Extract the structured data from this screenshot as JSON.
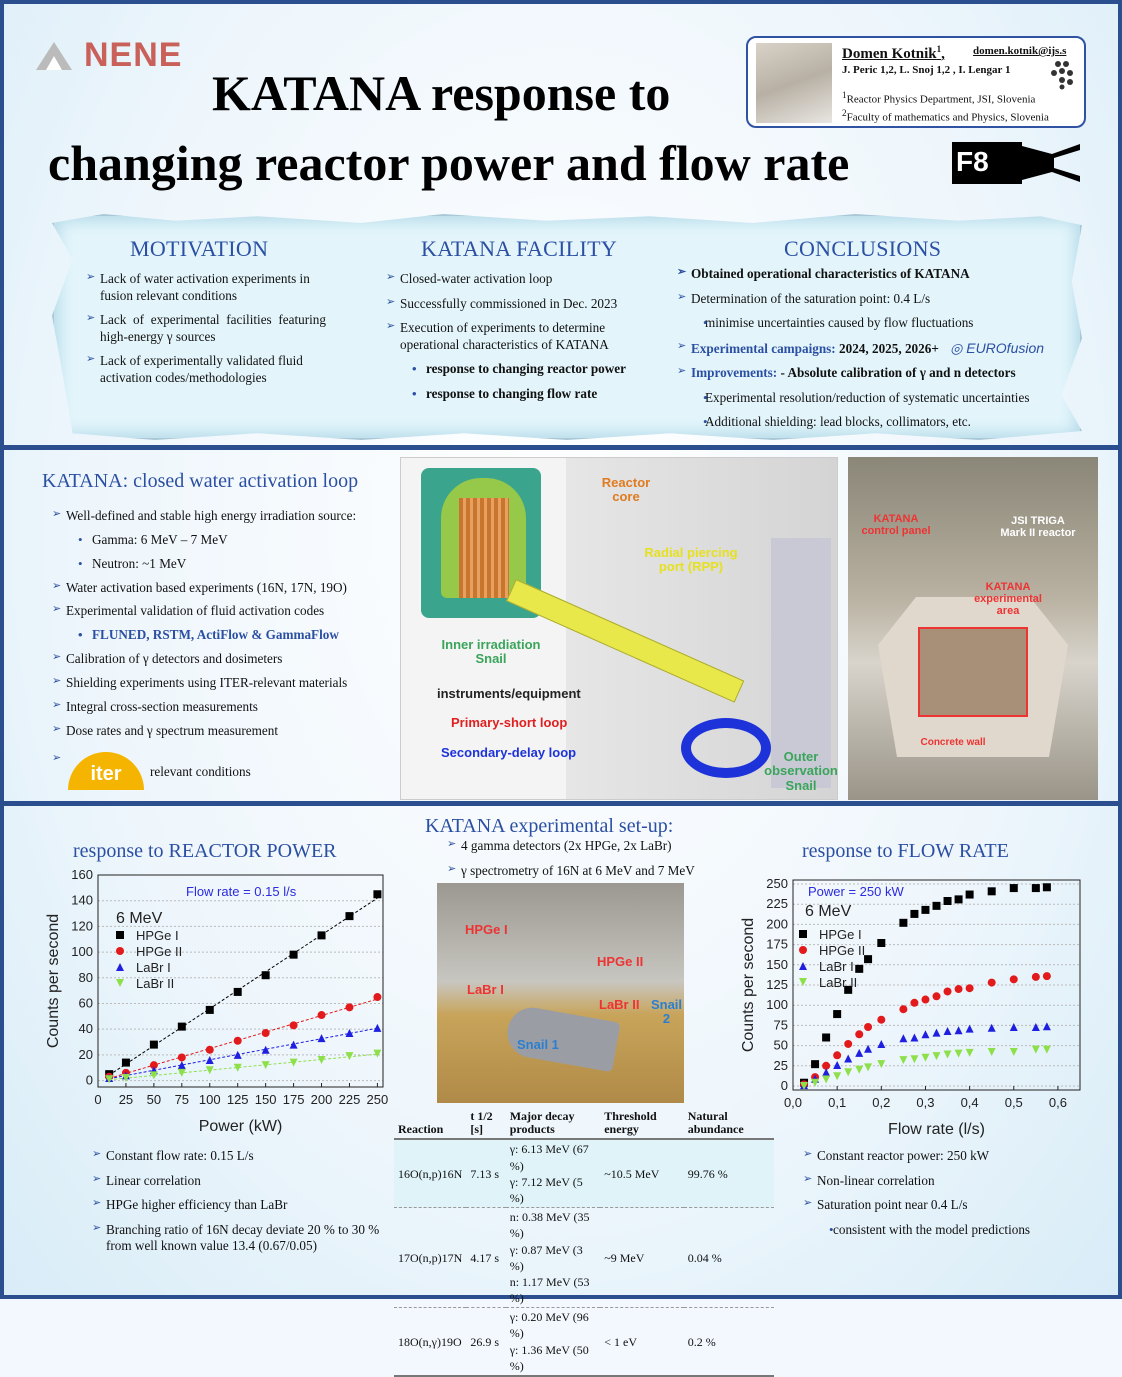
{
  "header": {
    "logo": "NENE",
    "title_line1": "KATANA response to",
    "title_line2": "changing reactor power and flow rate",
    "logo_right": "F8"
  },
  "author": {
    "name": "Domen Kotnik",
    "name_sup": "1",
    "email": "domen.kotnik@ijs.s",
    "coauthors": "J. Peric 1,2, L. Snoj 1,2 , I. Lengar 1",
    "affil1": "Reactor Physics Department, JSI, Slovenia",
    "affil2": "Faculty of mathematics and Physics, Slovenia"
  },
  "motivation": {
    "title": "MOTIVATION",
    "items": [
      "Lack of water activation experiments in fusion relevant conditions",
      "Lack of experimental facilities featuring high-energy γ sources",
      "Lack of experimentally validated fluid activation codes/methodologies"
    ]
  },
  "facility": {
    "title": "KATANA FACILITY",
    "items": [
      "Closed-water activation loop",
      "Successfully commissioned in Dec. 2023",
      "Execution of experiments to determine operational characteristics of KATANA"
    ],
    "subitems": [
      "response to changing reactor power",
      "response to changing flow rate"
    ]
  },
  "conclusions": {
    "title": "CONCLUSIONS",
    "item1": "Obtained operational characteristics of KATANA",
    "item2": "Determination of the saturation point: 0.4 L/s",
    "item2_sub": "minimise uncertainties caused by flow fluctuations",
    "item3_label": "Experimental campaigns:",
    "item3_value": "2024, 2025, 2026+",
    "eurofusion": "EUROfusion",
    "item4_label": "Improvements:",
    "item4_value": "- Absolute calibration of γ and n detectors",
    "item4_sub1": "Experimental resolution/reduction of systematic uncertainties",
    "item4_sub2": "Additional shielding: lead blocks, collimators, etc."
  },
  "loop": {
    "title": "KATANA: closed water activation loop",
    "items": [
      {
        "text": "Well-defined and stable high energy irradiation source:",
        "sub": [
          "Gamma: 6 MeV – 7 MeV",
          "Neutron: ~1 MeV"
        ]
      },
      {
        "text": "Water activation based experiments (16N, 17N, 19O)"
      },
      {
        "text": "Experimental validation of fluid activation codes",
        "sub": [
          "FLUNED, RSTM, ActiFlow & GammaFlow"
        ]
      },
      {
        "text": "Calibration of γ detectors and dosimeters"
      },
      {
        "text": "Shielding experiments using ITER-relevant materials"
      },
      {
        "text": "Integral cross-section measurements"
      },
      {
        "text": "Dose rates and γ spectrum measurement"
      },
      {
        "text": "relevant conditions",
        "logo": "iter"
      }
    ]
  },
  "render": {
    "reactor_core": "Reactor core",
    "rpp": "Radial piercing port (RPP)",
    "inner": "Inner irradiation Snail",
    "instruments": "instruments/equipment",
    "primary": "Primary-short loop",
    "secondary": "Secondary-delay loop",
    "outer": "Outer observation Snail"
  },
  "hall": {
    "control": "KATANA control panel",
    "triga": "JSI TRIGA Mark II reactor",
    "area": "KATANA experimental area",
    "wall": "Concrete wall"
  },
  "setup": {
    "title": "KATANA experimental set-up:",
    "items": [
      "4 gamma detectors (2x HPGe, 2x LaBr)",
      "γ spectrometry of 16N at 6 MeV and 7 MeV"
    ],
    "photo_labels": [
      "HPGe I",
      "HPGe II",
      "LaBr I",
      "LaBr II",
      "Snail 2",
      "Snail 1"
    ]
  },
  "table": {
    "headers": [
      "Reaction",
      "t 1/2 [s]",
      "Major decay products",
      "Threshold energy",
      "Natural abundance"
    ],
    "rows": [
      [
        "16O(n,p)16N",
        "7.13 s",
        "γ: 6.13 MeV (67 %)|γ: 7.12 MeV (5 %)",
        "~10.5 MeV",
        "99.76 %"
      ],
      [
        "17O(n,p)17N",
        "4.17 s",
        "n: 0.38 MeV (35 %)|γ: 0.87 MeV (3 %)|n: 1.17 MeV (53 %)",
        "~9 MeV",
        "0.04 %"
      ],
      [
        "18O(n,γ)19O",
        "26.9 s",
        "γ: 0.20 MeV (96 %)|γ: 1.36 MeV (50 %)",
        "< 1 eV",
        "0.2 %"
      ]
    ]
  },
  "power_section": {
    "title": "response to REACTOR POWER",
    "items": [
      "Constant flow rate: 0.15 L/s",
      "Linear correlation",
      "HPGe higher efficiency than LaBr",
      "Branching ratio of 16N decay deviate 20 % to 30 % from well known value 13.4 (0.67/0.05)"
    ]
  },
  "flow_section": {
    "title": "response to FLOW RATE",
    "items": [
      "Constant reactor power: 250 kW",
      "Non-linear correlation",
      "Saturation point near 0.4 L/s"
    ],
    "sub": "consistent with the model predictions"
  },
  "chart_data": [
    {
      "type": "scatter",
      "annotation": "Flow rate = 0.15 l/s",
      "subtitle": "6 MeV",
      "xlabel": "Power (kW)",
      "ylabel": "Counts per second",
      "xlim": [
        0,
        255
      ],
      "ylim": [
        -5,
        160
      ],
      "xticks": [
        0,
        25,
        50,
        75,
        100,
        125,
        150,
        175,
        200,
        225,
        250
      ],
      "yticks": [
        0,
        20,
        40,
        60,
        80,
        100,
        120,
        140,
        160
      ],
      "grid": "horizontal dotted",
      "legend": "top-left",
      "fit_lines": "linear dashed",
      "x": [
        10,
        25,
        50,
        75,
        100,
        125,
        150,
        175,
        200,
        225,
        250
      ],
      "series": [
        {
          "name": "HPGe I",
          "color": "#000000",
          "marker": "square",
          "values": [
            5,
            14,
            28,
            42,
            55,
            69,
            82,
            98,
            113,
            128,
            145
          ]
        },
        {
          "name": "HPGe II",
          "color": "#e31a1c",
          "marker": "circle",
          "values": [
            3,
            6,
            12,
            18,
            24,
            31,
            37,
            43,
            51,
            57,
            65
          ]
        },
        {
          "name": "LaBr I",
          "color": "#1f1fe0",
          "marker": "triangle-up",
          "values": [
            2,
            4,
            8,
            12,
            16,
            20,
            24,
            28,
            33,
            37,
            41
          ]
        },
        {
          "name": "LaBr II",
          "color": "#8ee04a",
          "marker": "triangle-down",
          "values": [
            1,
            2,
            4,
            6,
            8,
            10,
            12,
            14,
            16,
            19,
            21
          ]
        }
      ]
    },
    {
      "type": "scatter",
      "annotation": "Power = 250 kW",
      "subtitle": "6 MeV",
      "xlabel": "Flow rate (l/s)",
      "ylabel": "Counts per second",
      "xlim": [
        0,
        0.65
      ],
      "ylim": [
        -5,
        255
      ],
      "xticks": [
        "0,0",
        "0,1",
        "0,2",
        "0,3",
        "0,4",
        "0,5",
        "0,6"
      ],
      "yticks": [
        0,
        25,
        50,
        75,
        100,
        125,
        150,
        175,
        200,
        225,
        250
      ],
      "grid": "horizontal dotted",
      "legend": "top-left",
      "x": [
        0.025,
        0.05,
        0.075,
        0.1,
        0.125,
        0.15,
        0.17,
        0.2,
        0.25,
        0.275,
        0.3,
        0.325,
        0.35,
        0.375,
        0.4,
        0.45,
        0.5,
        0.55,
        0.575
      ],
      "series": [
        {
          "name": "HPGe I",
          "color": "#000000",
          "marker": "square",
          "values": [
            4,
            27,
            60,
            89,
            119,
            145,
            157,
            177,
            202,
            213,
            218,
            223,
            229,
            231,
            237,
            241,
            245,
            245,
            246
          ]
        },
        {
          "name": "HPGe II",
          "color": "#e31a1c",
          "marker": "circle",
          "values": [
            2,
            11,
            25,
            38,
            52,
            64,
            73,
            82,
            95,
            103,
            107,
            111,
            117,
            120,
            121,
            128,
            132,
            135,
            136
          ]
        },
        {
          "name": "LaBr I",
          "color": "#1f1fe0",
          "marker": "triangle-up",
          "values": [
            1,
            9,
            17,
            26,
            34,
            41,
            46,
            52,
            59,
            60,
            64,
            66,
            68,
            69,
            71,
            72,
            73,
            73,
            74
          ]
        },
        {
          "name": "LaBr II",
          "color": "#8ee04a",
          "marker": "triangle-down",
          "values": [
            0,
            4,
            8,
            12,
            17,
            20,
            23,
            27,
            32,
            33,
            35,
            37,
            39,
            40,
            41,
            42,
            42,
            45,
            45
          ]
        }
      ]
    }
  ],
  "colors": {
    "accent": "#2b4fa3",
    "border": "#2b4e8f",
    "nene": "#c9615a"
  }
}
